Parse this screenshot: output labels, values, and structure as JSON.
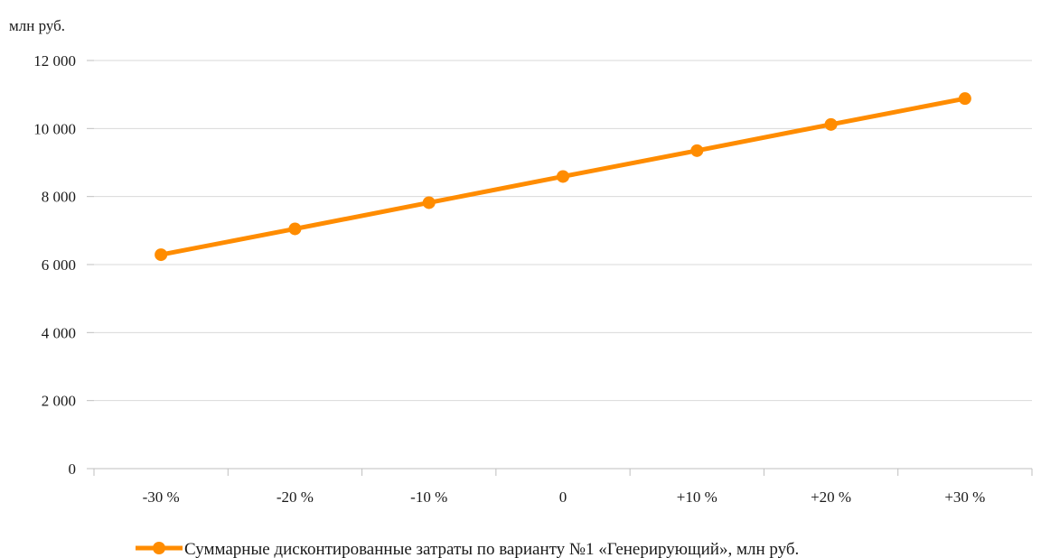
{
  "chart_data": {
    "type": "line",
    "y_unit_label": "млн руб.",
    "categories": [
      "-30 %",
      "-20 %",
      "-10 %",
      "0",
      "+10 %",
      "+20 %",
      "+30 %"
    ],
    "series": [
      {
        "name": "Суммарные дисконтированные затраты по варианту №1 «Генерирующий», млн руб.",
        "values": [
          6290,
          7050,
          7820,
          8590,
          9350,
          10120,
          10880
        ],
        "color": "#FF8C00"
      }
    ],
    "y_ticks": [
      0,
      2000,
      4000,
      6000,
      8000,
      10000,
      12000
    ],
    "y_tick_labels": [
      "0",
      "2 000",
      "4 000",
      "6 000",
      "8 000",
      "10 000",
      "12 000"
    ],
    "ylim": [
      0,
      12000
    ],
    "grid": true,
    "legend_position": "bottom"
  }
}
